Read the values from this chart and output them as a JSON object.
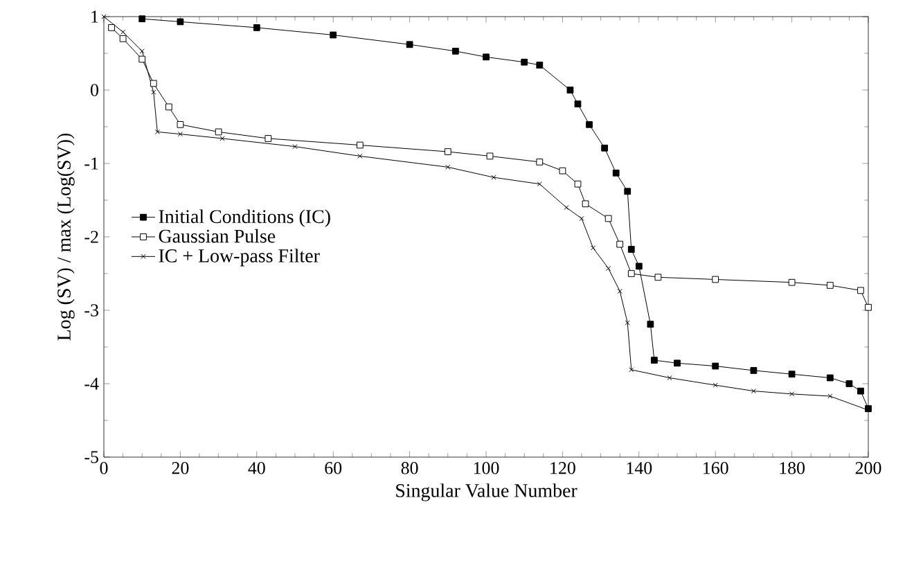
{
  "chart_data": {
    "type": "line",
    "xlabel": "Singular Value Number",
    "ylabel": "Log (SV) / max (Log(SV))",
    "xlim": [
      0,
      200
    ],
    "ylim": [
      -5,
      1
    ],
    "xticks": [
      0,
      20,
      40,
      60,
      80,
      100,
      120,
      140,
      160,
      180,
      200
    ],
    "yticks": [
      -5,
      -4,
      -3,
      -2,
      -1,
      0,
      1
    ],
    "grid": false,
    "legend": "left",
    "line_style": "solid",
    "series": [
      {
        "name": "Initial Conditions (IC)",
        "color": "#000000",
        "marker": "square",
        "x": [
          10,
          20,
          40,
          60,
          80,
          92,
          100,
          110,
          114,
          122,
          124,
          127,
          131,
          134,
          137,
          138,
          140,
          143,
          144,
          150,
          160,
          170,
          180,
          190,
          195,
          198,
          200
        ],
        "values": [
          0.97,
          0.93,
          0.85,
          0.75,
          0.62,
          0.53,
          0.45,
          0.38,
          0.34,
          0.0,
          -0.19,
          -0.47,
          -0.79,
          -1.13,
          -1.38,
          -2.17,
          -2.4,
          -3.19,
          -3.68,
          -3.72,
          -3.76,
          -3.82,
          -3.87,
          -3.92,
          -4.0,
          -4.1,
          -4.34
        ]
      },
      {
        "name": "Gaussian Pulse",
        "color": "#000000",
        "marker": "square",
        "x": [
          2,
          5,
          10,
          13,
          17,
          20,
          30,
          43,
          67,
          90,
          101,
          114,
          120,
          124,
          126,
          132,
          135,
          138,
          145,
          160,
          180,
          190,
          198,
          200
        ],
        "values": [
          0.85,
          0.7,
          0.42,
          0.09,
          -0.23,
          -0.47,
          -0.57,
          -0.66,
          -0.75,
          -0.84,
          -0.9,
          -0.98,
          -1.1,
          -1.28,
          -1.55,
          -1.75,
          -2.1,
          -2.5,
          -2.55,
          -2.58,
          -2.62,
          -2.66,
          -2.73,
          -2.96
        ]
      },
      {
        "name": "IC + Low-pass Filter",
        "color": "#000000",
        "marker": "cross",
        "x": [
          0,
          5,
          10,
          13,
          14,
          20,
          31,
          50,
          67,
          90,
          102,
          114,
          121,
          125,
          128,
          132,
          135,
          137,
          138,
          148,
          160,
          170,
          180,
          190,
          200
        ],
        "values": [
          1.0,
          0.79,
          0.53,
          -0.03,
          -0.57,
          -0.6,
          -0.66,
          -0.77,
          -0.9,
          -1.05,
          -1.19,
          -1.28,
          -1.6,
          -1.75,
          -2.15,
          -2.43,
          -2.74,
          -3.17,
          -3.81,
          -3.92,
          -4.02,
          -4.1,
          -4.14,
          -4.17,
          -4.36
        ]
      }
    ]
  }
}
